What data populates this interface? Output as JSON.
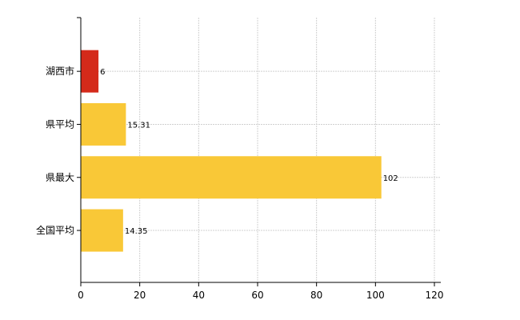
{
  "chart_data": {
    "type": "bar",
    "orientation": "horizontal",
    "categories": [
      "湖西市",
      "県平均",
      "県最大",
      "全国平均"
    ],
    "values": [
      6,
      15.31,
      102,
      14.35
    ],
    "data_labels": [
      "6",
      "15.31",
      "102",
      "14.35"
    ],
    "colors": [
      "#d42a1a",
      "#f9c837",
      "#f9c837",
      "#f9c837"
    ],
    "xlim": [
      0,
      120
    ],
    "x_ticks": [
      0,
      20,
      40,
      60,
      80,
      100,
      120
    ],
    "x_tick_labels": [
      "0",
      "20",
      "40",
      "60",
      "80",
      "100",
      "120"
    ],
    "grid": true,
    "title": "",
    "xlabel": "",
    "ylabel": ""
  }
}
